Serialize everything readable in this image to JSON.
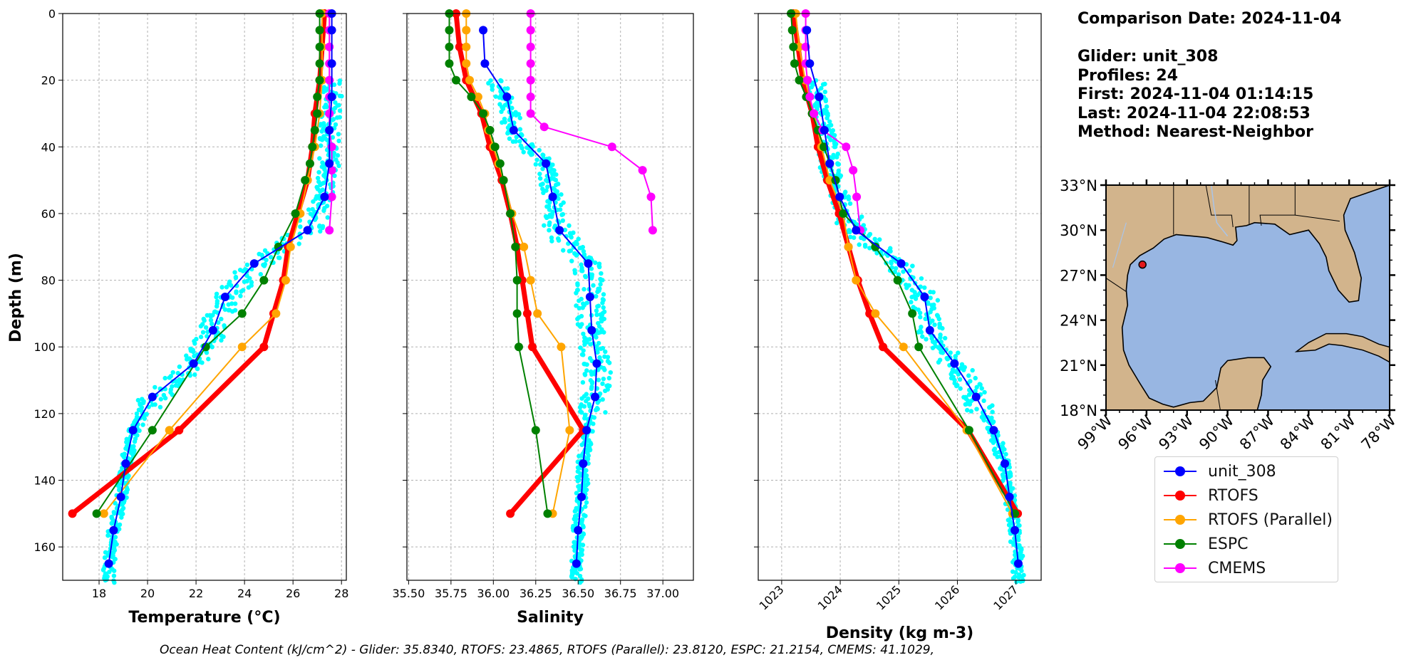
{
  "chart_data": [
    {
      "type": "line",
      "xlabel": "Temperature (°C)",
      "ylabel": "Depth (m)",
      "xlim": [
        16.5,
        28.2
      ],
      "ylim": [
        170,
        0
      ],
      "xticks": [
        18,
        20,
        22,
        24,
        26,
        28
      ],
      "yticks": [
        0,
        20,
        40,
        60,
        80,
        100,
        120,
        140,
        160
      ],
      "grid": true,
      "series": [
        {
          "name": "unit_308",
          "depth": [
            0,
            5,
            15,
            25,
            35,
            45,
            55,
            65,
            75,
            85,
            95,
            105,
            115,
            125,
            135,
            145,
            155,
            165
          ],
          "values": [
            27.6,
            27.6,
            27.6,
            27.6,
            27.5,
            27.5,
            27.3,
            26.6,
            24.4,
            23.2,
            22.7,
            21.9,
            20.2,
            19.4,
            19.1,
            18.9,
            18.6,
            18.4
          ]
        },
        {
          "name": "RTOFS",
          "depth": [
            0,
            10,
            20,
            30,
            40,
            50,
            60,
            70,
            80,
            90,
            100,
            125,
            150
          ],
          "values": [
            27.3,
            27.2,
            27.1,
            26.9,
            26.8,
            26.6,
            26.2,
            25.8,
            25.6,
            25.2,
            24.8,
            21.3,
            16.9
          ]
        },
        {
          "name": "RTOFS (Parallel)",
          "depth": [
            0,
            10,
            20,
            30,
            40,
            50,
            60,
            70,
            80,
            90,
            100,
            125,
            150
          ],
          "values": [
            27.2,
            27.2,
            27.2,
            27.1,
            26.9,
            26.6,
            26.3,
            25.9,
            25.7,
            25.3,
            23.9,
            20.9,
            18.2
          ]
        },
        {
          "name": "ESPC",
          "depth": [
            0,
            5,
            10,
            15,
            20,
            25,
            30,
            35,
            40,
            45,
            50,
            60,
            70,
            80,
            90,
            100,
            125,
            150
          ],
          "values": [
            27.1,
            27.1,
            27.1,
            27.1,
            27.1,
            27.0,
            27.0,
            26.9,
            26.8,
            26.7,
            26.5,
            26.1,
            25.4,
            24.8,
            23.9,
            22.4,
            20.2,
            17.9
          ]
        },
        {
          "name": "CMEMS",
          "depth": [
            0,
            5,
            10,
            15,
            20,
            25,
            30,
            35,
            40,
            47,
            55,
            65
          ],
          "values": [
            27.5,
            27.5,
            27.5,
            27.5,
            27.5,
            27.5,
            27.5,
            27.5,
            27.6,
            27.6,
            27.6,
            27.5
          ]
        }
      ]
    },
    {
      "type": "line",
      "xlabel": "Salinity",
      "ylabel": "",
      "xlim": [
        35.49,
        37.18
      ],
      "ylim": [
        170,
        0
      ],
      "xticks": [
        "35.50",
        "35.75",
        "36.00",
        "36.25",
        "36.50",
        "36.75",
        "37.00"
      ],
      "yticks": [
        0,
        20,
        40,
        60,
        80,
        100,
        120,
        140,
        160
      ],
      "grid": true,
      "series": [
        {
          "name": "unit_308",
          "depth": [
            5,
            15,
            25,
            35,
            45,
            55,
            65,
            75,
            85,
            95,
            105,
            115,
            125,
            135,
            145,
            155,
            165
          ],
          "values": [
            35.94,
            35.95,
            36.08,
            36.12,
            36.31,
            36.35,
            36.39,
            36.56,
            36.57,
            36.58,
            36.61,
            36.6,
            36.55,
            36.53,
            36.52,
            36.5,
            36.49
          ]
        },
        {
          "name": "RTOFS",
          "depth": [
            0,
            10,
            20,
            30,
            40,
            50,
            60,
            70,
            80,
            90,
            100,
            125,
            150
          ],
          "values": [
            35.78,
            35.8,
            35.84,
            35.93,
            35.98,
            36.05,
            36.1,
            36.14,
            36.17,
            36.2,
            36.23,
            36.53,
            36.1
          ]
        },
        {
          "name": "RTOFS (Parallel)",
          "depth": [
            0,
            5,
            10,
            15,
            20,
            25,
            30,
            35,
            40,
            45,
            50,
            60,
            70,
            80,
            90,
            100,
            125,
            150
          ],
          "values": [
            35.84,
            35.84,
            35.84,
            35.84,
            35.86,
            35.91,
            35.95,
            35.97,
            36.0,
            36.03,
            36.06,
            36.11,
            36.18,
            36.22,
            36.26,
            36.4,
            36.45,
            36.35
          ]
        },
        {
          "name": "ESPC",
          "depth": [
            0,
            5,
            10,
            15,
            20,
            25,
            30,
            35,
            40,
            45,
            50,
            60,
            70,
            80,
            90,
            100,
            125,
            150
          ],
          "values": [
            35.74,
            35.74,
            35.74,
            35.74,
            35.78,
            35.87,
            35.94,
            35.98,
            36.01,
            36.04,
            36.06,
            36.1,
            36.13,
            36.14,
            36.14,
            36.15,
            36.25,
            36.32
          ]
        },
        {
          "name": "CMEMS",
          "depth": [
            0,
            5,
            10,
            15,
            20,
            25,
            30,
            34,
            40,
            47,
            55,
            65
          ],
          "values": [
            36.22,
            36.22,
            36.22,
            36.22,
            36.22,
            36.22,
            36.22,
            36.3,
            36.7,
            36.88,
            36.93,
            36.94
          ]
        }
      ]
    },
    {
      "type": "line",
      "xlabel": "Density (kg m-3)",
      "ylabel": "",
      "xlim": [
        1022.6,
        1027.43
      ],
      "ylim": [
        170,
        0
      ],
      "xticks": [
        1023,
        1024,
        1025,
        1026,
        1027
      ],
      "yticks": [
        0,
        20,
        40,
        60,
        80,
        100,
        120,
        140,
        160
      ],
      "grid": true,
      "series": [
        {
          "name": "unit_308",
          "depth": [
            5,
            15,
            25,
            35,
            45,
            55,
            65,
            75,
            85,
            95,
            105,
            115,
            125,
            135,
            145,
            155,
            165
          ],
          "values": [
            1023.43,
            1023.48,
            1023.64,
            1023.73,
            1023.82,
            1023.99,
            1024.27,
            1025.04,
            1025.44,
            1025.53,
            1025.95,
            1026.32,
            1026.62,
            1026.81,
            1026.89,
            1026.98,
            1027.04
          ]
        },
        {
          "name": "RTOFS",
          "depth": [
            0,
            10,
            20,
            30,
            40,
            50,
            60,
            70,
            80,
            90,
            100,
            125,
            150
          ],
          "values": [
            1023.2,
            1023.28,
            1023.36,
            1023.52,
            1023.62,
            1023.78,
            1023.98,
            1024.14,
            1024.3,
            1024.5,
            1024.73,
            1026.18,
            1027.03
          ]
        },
        {
          "name": "RTOFS (Parallel)",
          "depth": [
            0,
            10,
            20,
            30,
            40,
            50,
            60,
            70,
            80,
            90,
            100,
            125,
            150
          ],
          "values": [
            1023.24,
            1023.3,
            1023.4,
            1023.55,
            1023.68,
            1023.82,
            1024.05,
            1024.14,
            1024.27,
            1024.6,
            1025.08,
            1026.16,
            1026.94
          ]
        },
        {
          "name": "ESPC",
          "depth": [
            0,
            5,
            10,
            15,
            20,
            25,
            30,
            35,
            40,
            45,
            50,
            60,
            70,
            80,
            90,
            100,
            125,
            150
          ],
          "values": [
            1023.16,
            1023.18,
            1023.2,
            1023.22,
            1023.3,
            1023.42,
            1023.52,
            1023.62,
            1023.72,
            1023.82,
            1023.92,
            1024.05,
            1024.6,
            1024.98,
            1025.23,
            1025.34,
            1026.2,
            1026.98
          ]
        },
        {
          "name": "CMEMS",
          "depth": [
            0,
            5,
            10,
            15,
            20,
            25,
            30,
            35,
            40,
            47,
            55,
            65
          ],
          "values": [
            1023.41,
            1023.41,
            1023.41,
            1023.41,
            1023.44,
            1023.48,
            1023.55,
            1023.7,
            1024.1,
            1024.22,
            1024.28,
            1024.34
          ]
        }
      ]
    }
  ],
  "colors": {
    "unit_308": "#0000ff",
    "RTOFS": "#ff0000",
    "RTOFS (Parallel)": "#ffa500",
    "ESPC": "#008000",
    "CMEMS": "#ff00ff",
    "glider_raw_points": "#00ffff",
    "map_land": "#d2b48c",
    "map_ocean": "#98b6e2",
    "glider_marker": "#e31a1c"
  },
  "info": {
    "comparison_date": "Comparison Date: 2024-11-04",
    "glider": "Glider: unit_308",
    "profiles": "Profiles: 24",
    "first": "First: 2024-11-04 01:14:15",
    "last": "Last: 2024-11-04 22:08:53",
    "method": "Method: Nearest-Neighbor"
  },
  "map": {
    "lat_labels": [
      "33°N",
      "30°N",
      "27°N",
      "24°N",
      "21°N",
      "18°N"
    ],
    "lon_labels": [
      "99°W",
      "96°W",
      "93°W",
      "90°W",
      "87°W",
      "84°W",
      "81°W",
      "78°W"
    ],
    "extent": {
      "lon_min": -99,
      "lon_max": -78,
      "lat_min": 18,
      "lat_max": 33
    },
    "glider_position": {
      "lon": -96.3,
      "lat": 27.7
    }
  },
  "legend": {
    "entries": [
      "unit_308",
      "RTOFS",
      "RTOFS (Parallel)",
      "ESPC",
      "CMEMS"
    ]
  },
  "footer": {
    "text": "Ocean Heat Content (kJ/cm^2) - Glider: 35.8340,  RTOFS: 23.4865,  RTOFS (Parallel): 23.8120,  ESPC: 21.2154,  CMEMS: 41.1029,"
  }
}
